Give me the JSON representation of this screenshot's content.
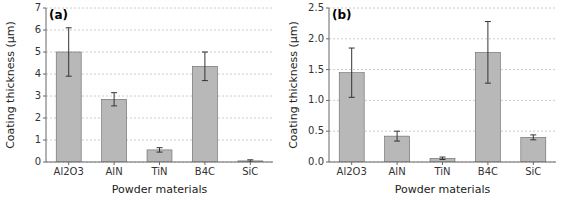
{
  "chart_data": [
    {
      "type": "bar",
      "title": "(a)",
      "categories": [
        "Al2O3",
        "AlN",
        "TiN",
        "B4C",
        "SiC"
      ],
      "values": [
        5.0,
        2.85,
        0.55,
        4.35,
        0.05
      ],
      "errors": [
        1.1,
        0.3,
        0.1,
        0.65,
        0.05
      ],
      "color": "#b8b8b8",
      "ylim": [
        0,
        7
      ],
      "yticks": [
        0,
        1,
        2,
        3,
        4,
        5,
        6,
        7
      ],
      "y_label": "Coating thickness (μm)",
      "x_label": "Powder materials",
      "grid": true
    },
    {
      "type": "bar",
      "title": "(b)",
      "categories": [
        "Al2O3",
        "AlN",
        "TiN",
        "B4C",
        "SiC"
      ],
      "values": [
        1.45,
        0.42,
        0.06,
        1.78,
        0.4
      ],
      "errors": [
        0.4,
        0.08,
        0.02,
        0.5,
        0.04
      ],
      "color": "#b8b8b8",
      "ylim": [
        0,
        2.5
      ],
      "yticks": [
        {
          "value": 0.0,
          "label": "0.0"
        },
        0.5,
        {
          "value": 1.0,
          "label": "1.0"
        },
        1.5,
        {
          "value": 2.0,
          "label": "2.0"
        },
        2.5
      ],
      "y_label": "Coating thickness (μm)",
      "x_label": "Powder materials",
      "grid": true
    }
  ]
}
